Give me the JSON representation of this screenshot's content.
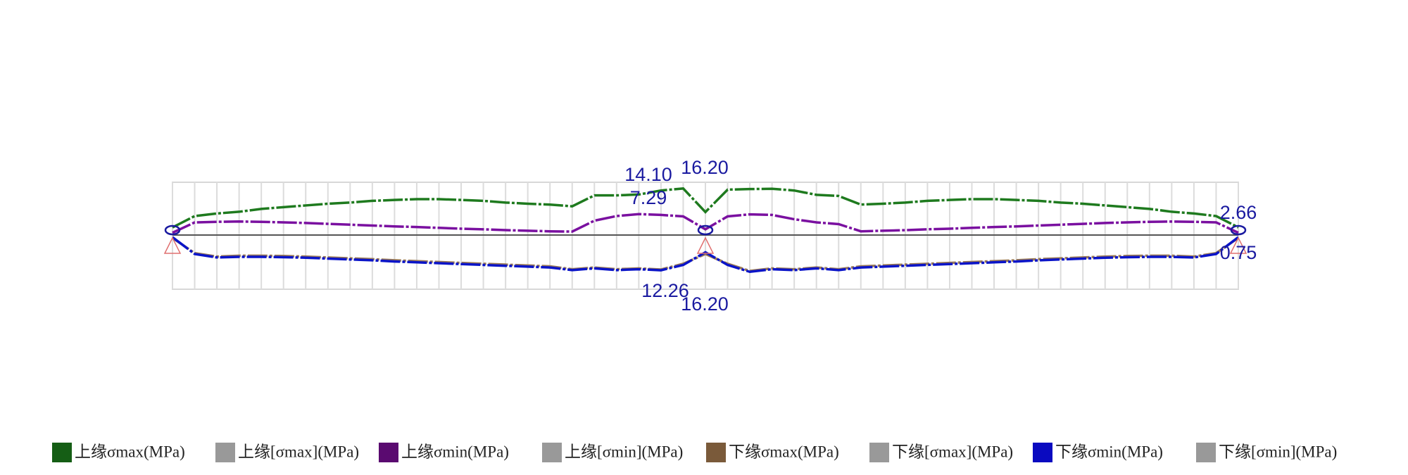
{
  "chart_data": {
    "type": "line",
    "categories": [
      null,
      null,
      null,
      null,
      null,
      null,
      null,
      null,
      null,
      null,
      null,
      null,
      null,
      null,
      null,
      null,
      null,
      null,
      null,
      null,
      null,
      null,
      null,
      null,
      null,
      null,
      null,
      null,
      null,
      null,
      null,
      null,
      null,
      null,
      null,
      null,
      null,
      null,
      null,
      null,
      null,
      null,
      null,
      null,
      null,
      null,
      null,
      null,
      null
    ],
    "ylim": [
      -24,
      24
    ],
    "y2lim": [
      24,
      -24
    ],
    "grid": true,
    "series": [
      {
        "name": "上缘σmax(MPa)",
        "color": "#1e7a1e",
        "legend_color": "#155e15",
        "values": [
          2.66,
          6.6,
          7.5,
          8.1,
          9.1,
          9.7,
          10.3,
          10.9,
          11.3,
          11.9,
          12.2,
          12.5,
          12.5,
          12.2,
          11.9,
          11.3,
          10.9,
          10.6,
          10.0,
          13.8,
          13.8,
          14.1,
          15.5,
          16.2,
          8.0,
          15.8,
          16.0,
          16.1,
          15.5,
          14.0,
          13.6,
          10.6,
          10.9,
          11.3,
          11.9,
          12.2,
          12.5,
          12.5,
          12.2,
          11.9,
          11.3,
          10.9,
          10.3,
          9.7,
          9.1,
          8.1,
          7.5,
          6.6,
          2.66
        ]
      },
      {
        "name": "上缘[σmax](MPa)",
        "color": "#999999"
      },
      {
        "name": "上缘σmin(MPa)",
        "color": "#7a10a0",
        "legend_color": "#5a0a70",
        "values": [
          0.8,
          4.4,
          4.6,
          4.7,
          4.6,
          4.4,
          4.2,
          3.9,
          3.6,
          3.3,
          3.0,
          2.8,
          2.5,
          2.2,
          2.0,
          1.7,
          1.5,
          1.3,
          1.2,
          5.0,
          6.6,
          7.29,
          7.0,
          6.5,
          2.0,
          6.5,
          7.2,
          7.0,
          5.5,
          4.4,
          3.8,
          1.3,
          1.5,
          1.7,
          2.0,
          2.2,
          2.5,
          2.8,
          3.0,
          3.3,
          3.6,
          3.9,
          4.2,
          4.4,
          4.6,
          4.7,
          4.6,
          4.4,
          0.8
        ]
      },
      {
        "name": "上缘[σmin](MPa)",
        "color": "#999999"
      },
      {
        "name": "下缘σmax(MPa)",
        "color": "#9a7a56",
        "legend_color": "#7a5a3a",
        "axis": "y2",
        "values": [
          1.0,
          6.3,
          7.5,
          7.2,
          7.2,
          7.3,
          7.5,
          7.8,
          8.1,
          8.4,
          8.8,
          9.1,
          9.4,
          9.7,
          10.0,
          10.3,
          10.6,
          10.9,
          11.9,
          11.3,
          11.9,
          11.6,
          12.0,
          10.0,
          6.6,
          10.0,
          12.5,
          11.6,
          11.9,
          11.3,
          11.9,
          10.9,
          10.6,
          10.3,
          10.0,
          9.7,
          9.4,
          9.1,
          8.8,
          8.4,
          8.1,
          7.8,
          7.5,
          7.3,
          7.2,
          7.2,
          7.5,
          6.3,
          1.0
        ]
      },
      {
        "name": "下缘[σmax](MPa)",
        "color": "#999999"
      },
      {
        "name": "下缘σmin(MPa)",
        "color": "#0a14c8",
        "legend_color": "#0a0ac0",
        "axis": "y2",
        "values": [
          0.75,
          6.6,
          7.8,
          7.6,
          7.6,
          7.7,
          7.9,
          8.2,
          8.5,
          8.8,
          9.2,
          9.5,
          9.8,
          10.1,
          10.4,
          10.7,
          11.0,
          11.3,
          12.2,
          11.6,
          12.2,
          11.9,
          12.26,
          10.4,
          6.0,
          10.4,
          12.8,
          11.9,
          12.2,
          11.6,
          12.2,
          11.3,
          11.0,
          10.7,
          10.4,
          10.1,
          9.8,
          9.5,
          9.2,
          8.8,
          8.5,
          8.2,
          7.9,
          7.7,
          7.6,
          7.6,
          7.8,
          6.6,
          0.75
        ]
      },
      {
        "name": "下缘[σmin](MPa)",
        "color": "#999999"
      }
    ],
    "annotations": [
      "14.10",
      "16.20",
      "7.29",
      "2.66",
      "12.26",
      "16.20",
      "0.75"
    ]
  }
}
